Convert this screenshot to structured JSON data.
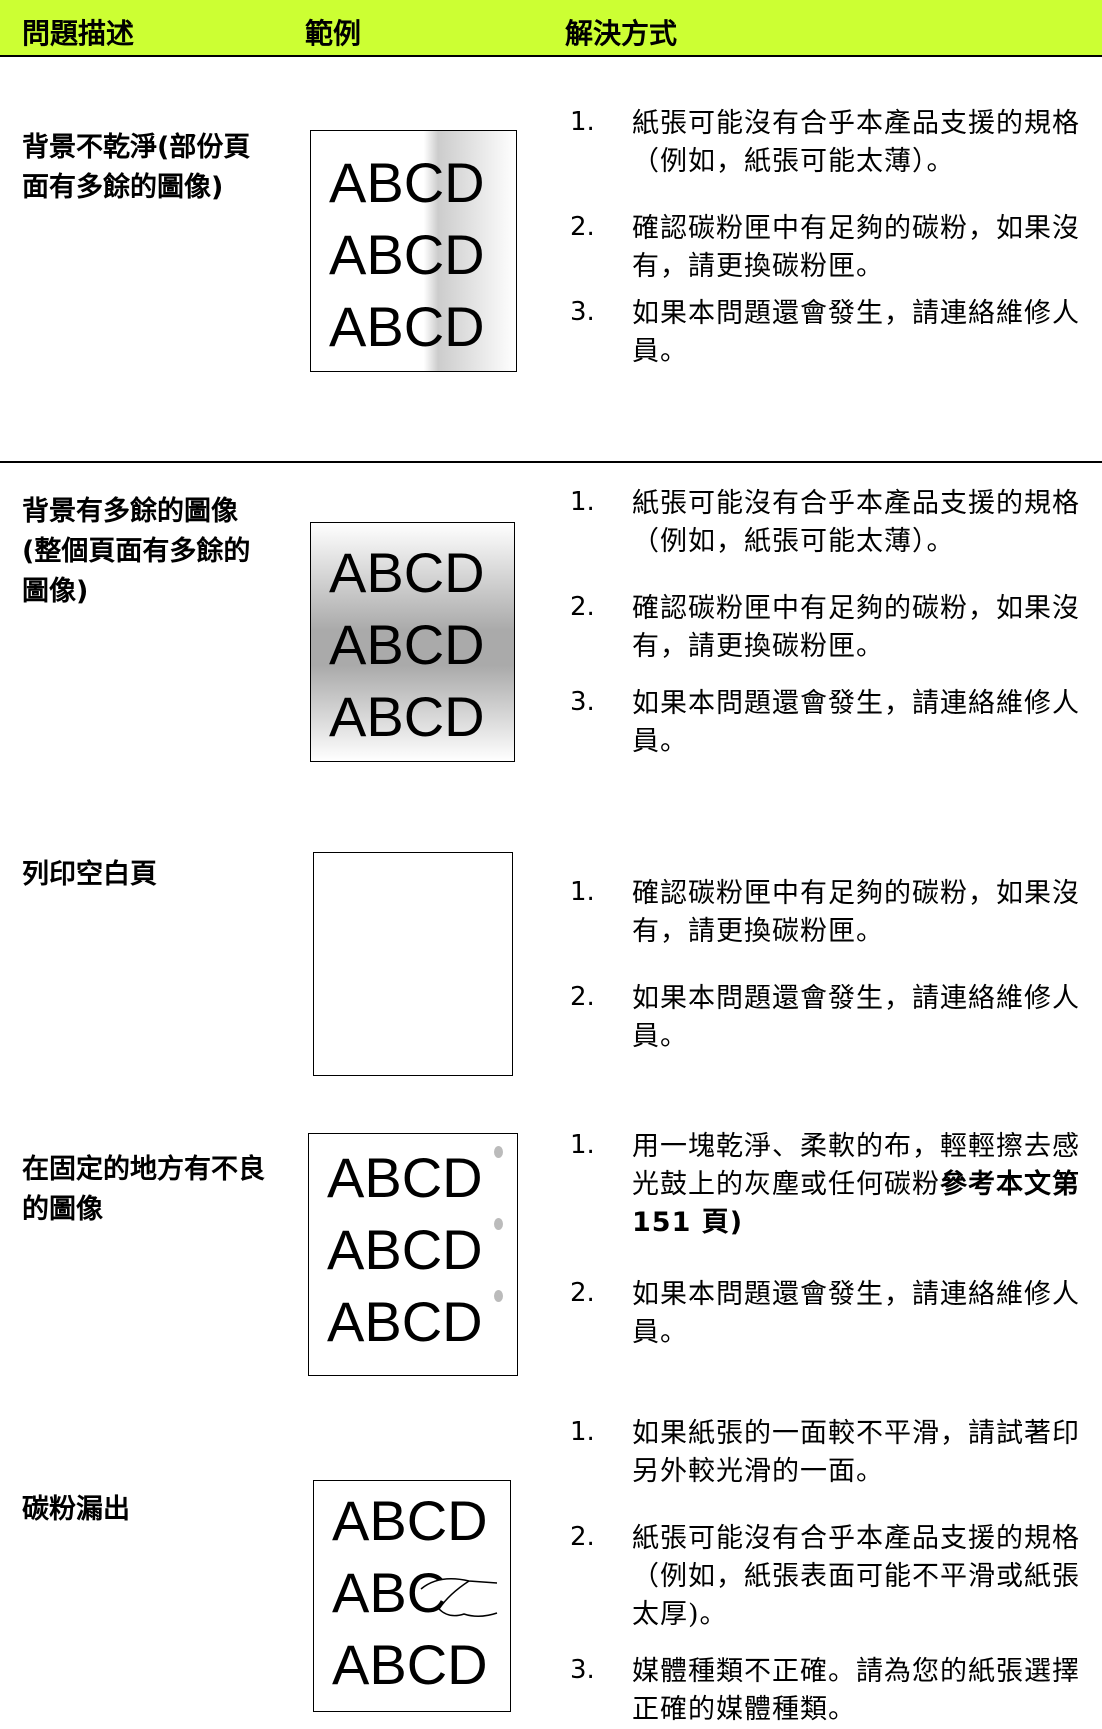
{
  "header": {
    "columns": [
      "問題描述",
      "範例",
      "解決方式"
    ]
  },
  "rows": [
    {
      "description": "背景不乾淨(部份頁面有多餘的圖像)",
      "example": [
        "ABCD",
        "ABCD",
        "ABCD"
      ],
      "items": [
        {
          "num": "1.",
          "text": "紙張可能沒有合乎本產品支援的規格（例如，紙張可能太薄）。"
        },
        {
          "num": "2.",
          "text": "確認碳粉匣中有足夠的碳粉，如果沒有，請更換碳粉匣。"
        },
        {
          "num": "3.",
          "text": "如果本問題還會發生，請連絡維修人員。"
        }
      ]
    },
    {
      "description": "背景有多餘的圖像(整個頁面有多餘的圖像)",
      "example": [
        "ABCD",
        "ABCD",
        "ABCD"
      ],
      "items": [
        {
          "num": "1.",
          "text": "紙張可能沒有合乎本產品支援的規格（例如，紙張可能太薄）。"
        },
        {
          "num": "2.",
          "text": "確認碳粉匣中有足夠的碳粉，如果沒有，請更換碳粉匣。"
        },
        {
          "num": "3.",
          "text": "如果本問題還會發生，請連絡維修人員。"
        }
      ]
    },
    {
      "description": "列印空白頁",
      "example": [],
      "items": [
        {
          "num": "1.",
          "text": "確認碳粉匣中有足夠的碳粉，如果沒有，請更換碳粉匣。"
        },
        {
          "num": "2.",
          "text": "如果本問題還會發生，請連絡維修人員。"
        }
      ]
    },
    {
      "description": "在固定的地方有不良的圖像",
      "example": [
        "ABCD",
        "ABCD",
        "ABCD"
      ],
      "items": [
        {
          "num": "1.",
          "text": "用一塊乾淨、柔軟的布，輕輕擦去感光鼓上的灰塵或任何碳粉",
          "bold": "參考本文第 151 頁)"
        },
        {
          "num": "2.",
          "text": "如果本問題還會發生，請連絡維修人員。"
        }
      ]
    },
    {
      "description": "碳粉漏出",
      "example": [
        "ABCD",
        "ABC",
        "ABCD"
      ],
      "items": [
        {
          "num": "1.",
          "text": "如果紙張的一面較不平滑，請試著印另外較光滑的一面。"
        },
        {
          "num": "2.",
          "text": "紙張可能沒有合乎本產品支援的規格（例如，紙張表面可能不平滑或紙張太厚)。"
        },
        {
          "num": "3.",
          "text": "媒體種類不正確。請為您的紙張選擇正確的媒體種類。"
        }
      ]
    }
  ]
}
